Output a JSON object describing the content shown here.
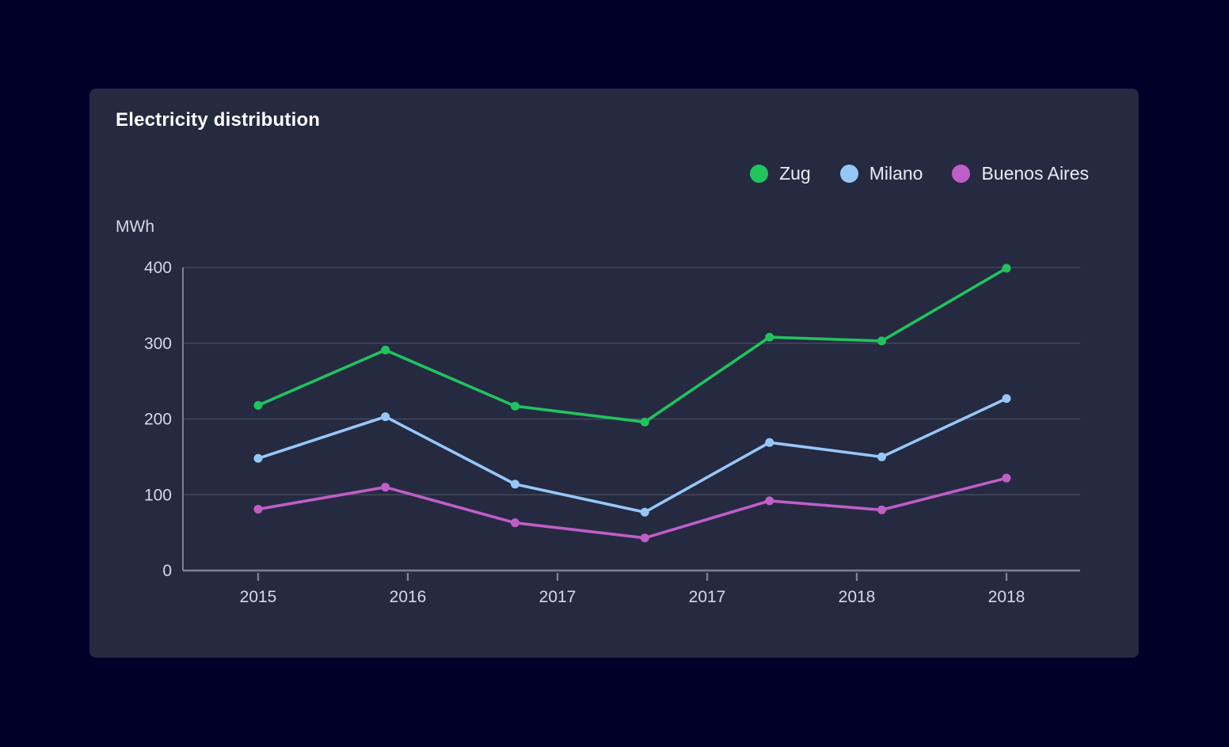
{
  "page": {
    "background": "#000028"
  },
  "card": {
    "background": "#252a41",
    "title": "Electricity distribution"
  },
  "legend": [
    {
      "label": "Zug",
      "color": "#20c45f"
    },
    {
      "label": "Milano",
      "color": "#97c7f8"
    },
    {
      "label": "Buenos Aires",
      "color": "#bf5ec6"
    }
  ],
  "chart_data": {
    "type": "line",
    "title": "Electricity distribution",
    "xlabel": "",
    "ylabel": "MWh",
    "ylim": [
      0,
      400
    ],
    "y_ticks": [
      0,
      100,
      200,
      300,
      400
    ],
    "x": [
      2015,
      2015.51,
      2016.03,
      2016.55,
      2017.05,
      2017.5,
      2018
    ],
    "x_tick_positions": [
      2015,
      2015.6,
      2016.2,
      2016.8,
      2017.4,
      2018
    ],
    "x_tick_labels": [
      "2015",
      "2016",
      "2017",
      "2017",
      "2018",
      "2018"
    ],
    "series": [
      {
        "name": "Zug",
        "color": "#20c45f",
        "values": [
          218,
          291,
          217,
          196,
          308,
          303,
          399
        ]
      },
      {
        "name": "Milano",
        "color": "#97c7f8",
        "values": [
          148,
          203,
          114,
          77,
          169,
          150,
          227
        ]
      },
      {
        "name": "Buenos Aires",
        "color": "#bf5ec6",
        "values": [
          81,
          110,
          63,
          43,
          92,
          80,
          122
        ]
      }
    ],
    "legend_position": "top-right",
    "grid": true,
    "grid_color": "#44485e",
    "axis_color": "#7d8196",
    "tick_label_color": "#d5d9e6"
  }
}
